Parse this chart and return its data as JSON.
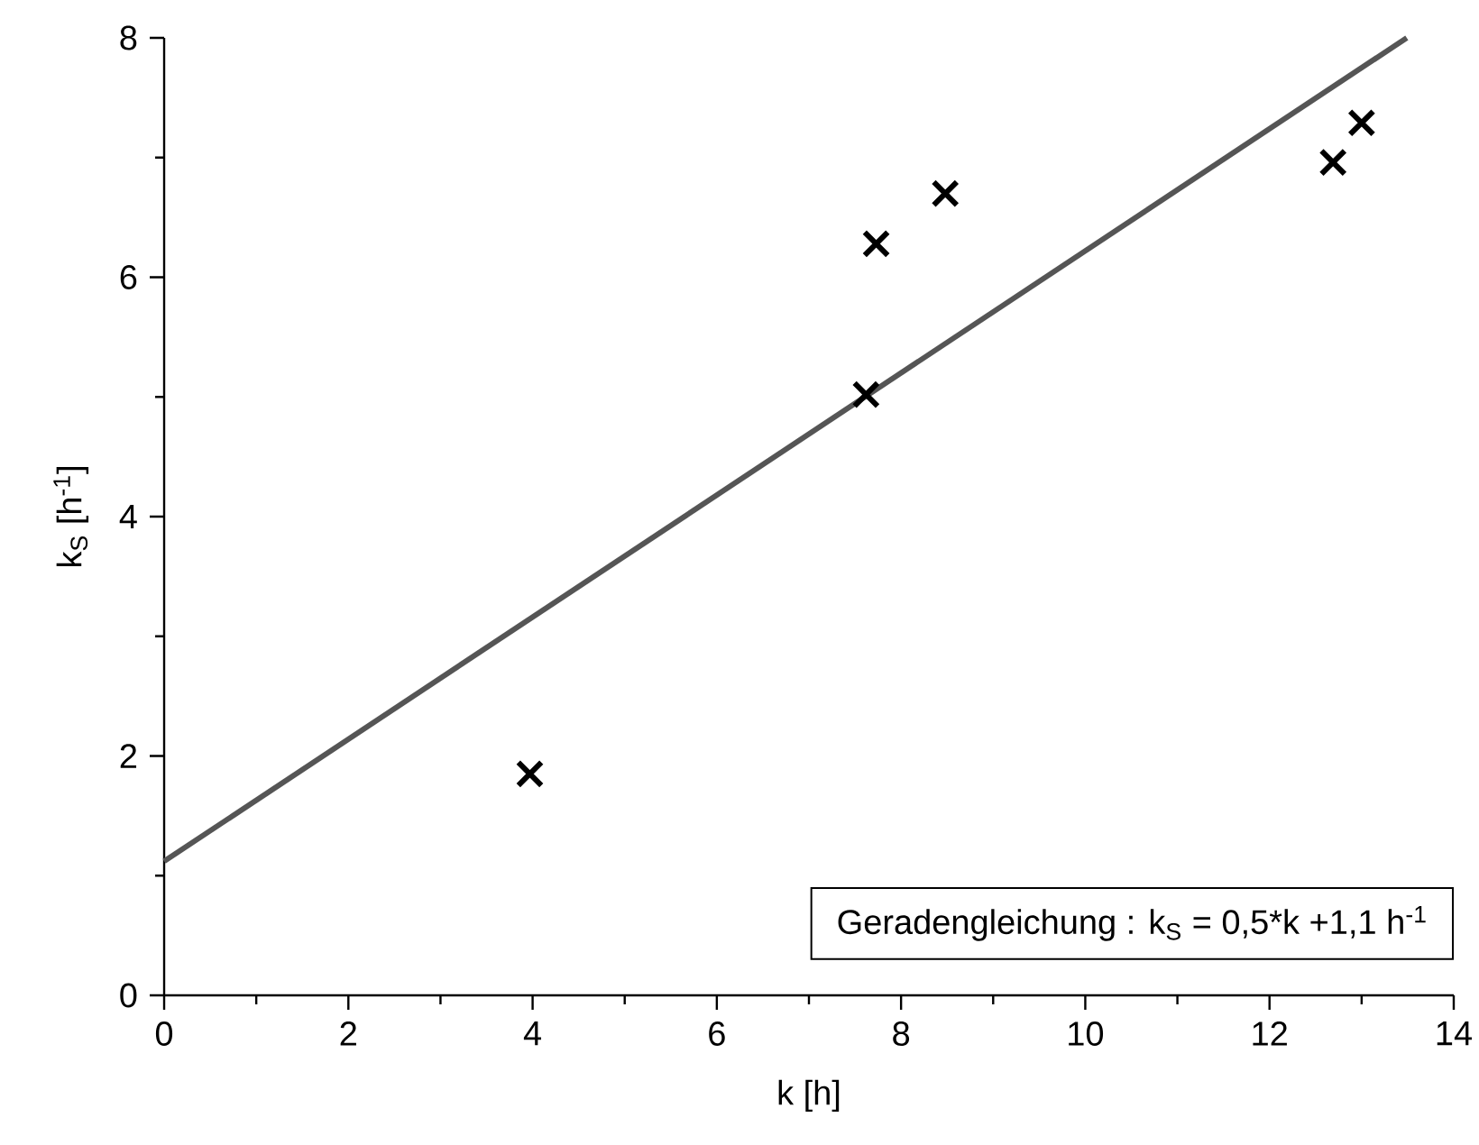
{
  "chart_data": {
    "type": "scatter",
    "xlabel": "k [h]",
    "ylabel": "k$_{S}$ [h$^{-1}$]",
    "xlim": [
      0,
      14
    ],
    "ylim": [
      0,
      8
    ],
    "xticks": [
      0,
      2,
      4,
      6,
      8,
      10,
      12,
      14
    ],
    "yticks": [
      0,
      2,
      4,
      6,
      8
    ],
    "series": [
      {
        "color": "#000000",
        "marker": "cross",
        "x": [
          3.97,
          7.62,
          7.73,
          8.48,
          12.69,
          13.0
        ],
        "values": [
          1.85,
          5.02,
          6.28,
          6.7,
          6.96,
          7.29
        ]
      },
      {
        "type": "line",
        "color": "#555555",
        "marker": "none",
        "x": [
          0,
          13.49
        ],
        "values": [
          1.12,
          8.0
        ]
      }
    ],
    "annotations": [
      "Geradengleichung : k$_{S}$ = 0,5*k +1,1 h$^{-1}$"
    ]
  }
}
